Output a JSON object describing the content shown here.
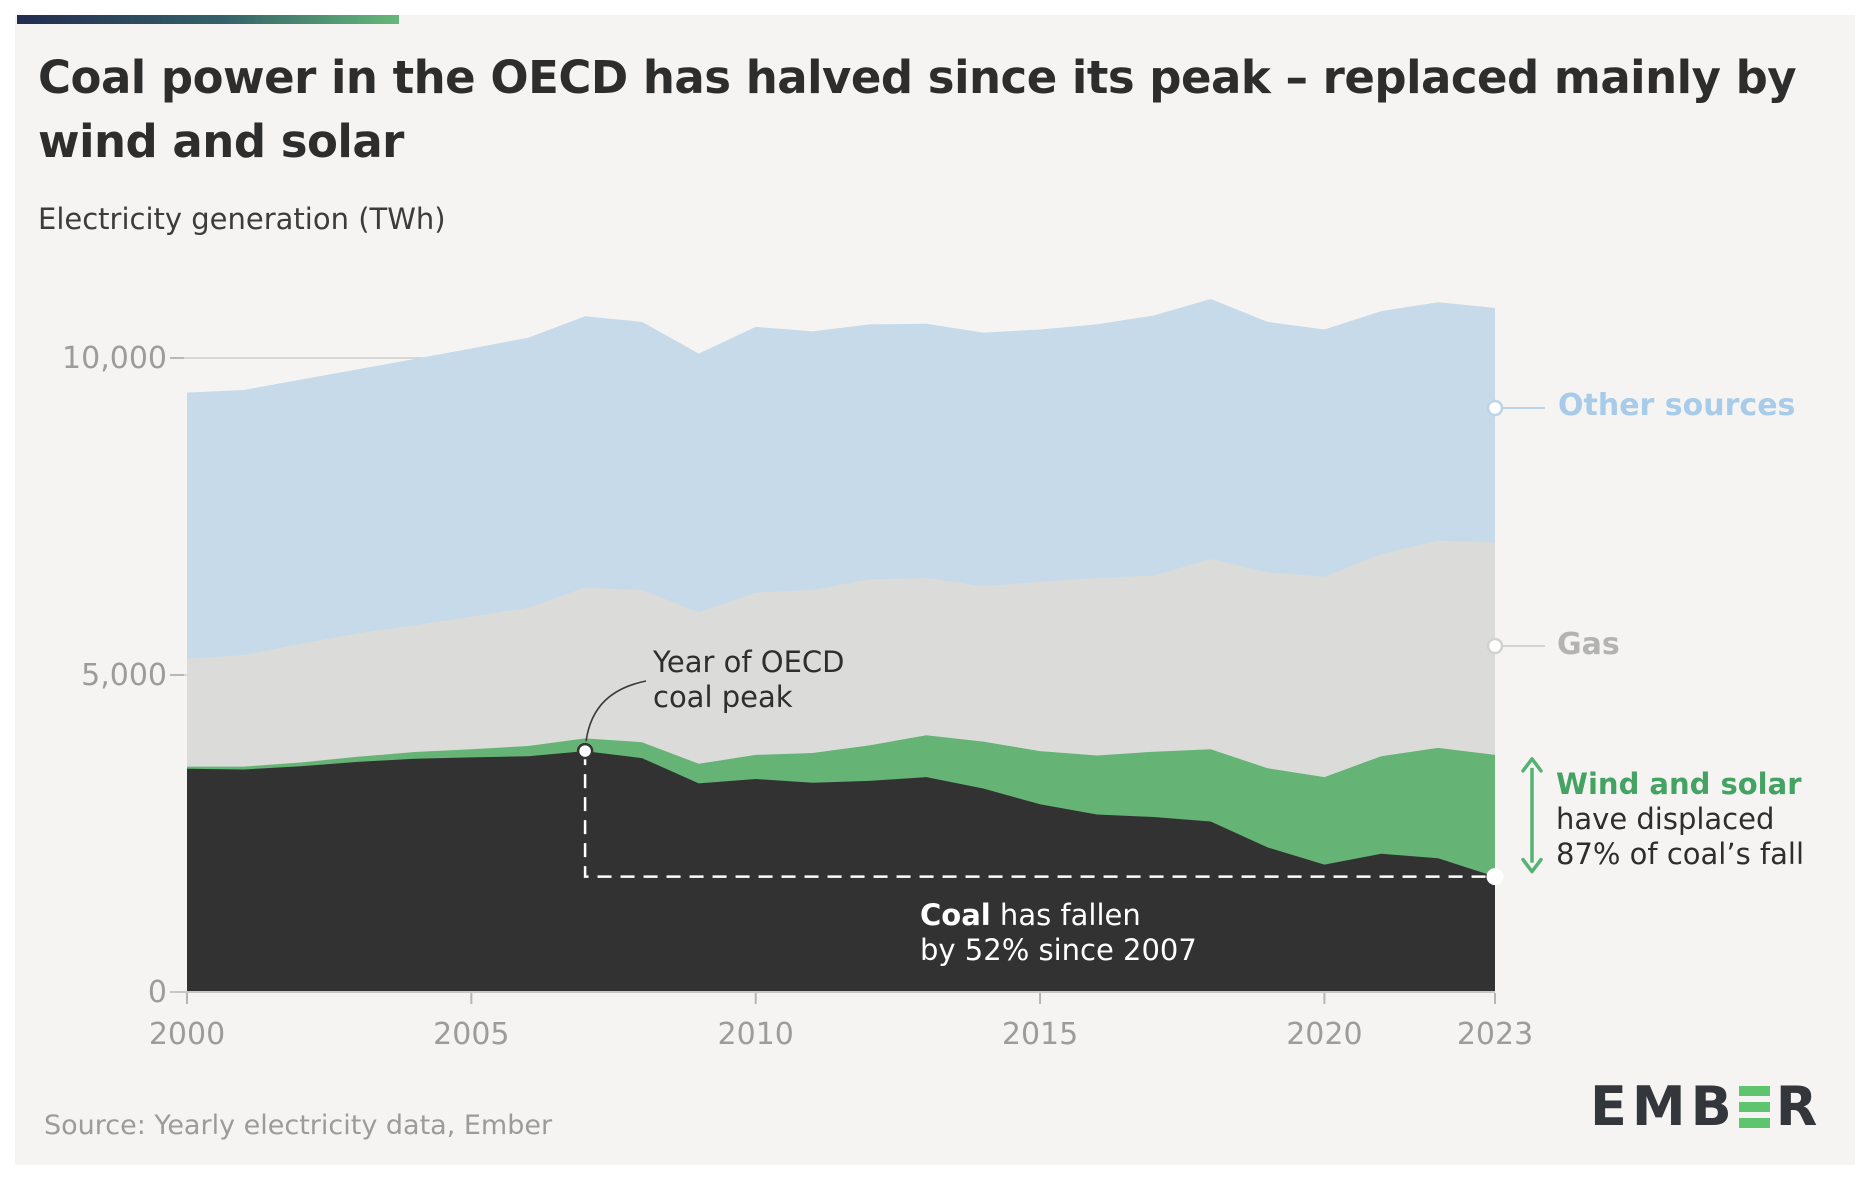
{
  "header": {
    "title_line1": "Coal power in the OECD has halved since its peak – replaced mainly by",
    "title_line2": "wind and solar",
    "subtitle": "Electricity generation (TWh)"
  },
  "annotations": {
    "peak_line1": "Year of OECD",
    "peak_line2": "coal peak",
    "coal_bold": "Coal",
    "coal_line1_rest": " has fallen",
    "coal_line2": "by 52% since 2007",
    "ws_line1": "Wind and solar",
    "ws_line2": "have displaced",
    "ws_line3": "87% of coal’s fall"
  },
  "labels": {
    "other_sources": "Other sources",
    "gas": "Gas"
  },
  "footer": {
    "source": "Source: Yearly electricity data, Ember",
    "logo_start": "EMB",
    "logo_end": "R"
  },
  "chart_data": {
    "type": "area",
    "stacked": true,
    "title": "Coal power in the OECD has halved since its peak – replaced mainly by wind and solar",
    "ylabel": "Electricity generation (TWh)",
    "ylim": [
      0,
      10000
    ],
    "grid": "horizontal",
    "x": [
      2000,
      2001,
      2002,
      2003,
      2004,
      2005,
      2006,
      2007,
      2008,
      2009,
      2010,
      2011,
      2012,
      2013,
      2014,
      2015,
      2016,
      2017,
      2018,
      2019,
      2020,
      2021,
      2022,
      2023
    ],
    "series": [
      {
        "name": "Coal",
        "color": "#323232",
        "values": [
          3520,
          3510,
          3560,
          3630,
          3680,
          3700,
          3720,
          3800,
          3690,
          3290,
          3360,
          3300,
          3330,
          3390,
          3210,
          2960,
          2800,
          2760,
          2690,
          2280,
          2010,
          2180,
          2110,
          1820
        ]
      },
      {
        "name": "Wind and solar",
        "color": "#65b476",
        "values": [
          35,
          45,
          60,
          80,
          105,
          130,
          160,
          200,
          250,
          310,
          380,
          470,
          560,
          660,
          740,
          840,
          930,
          1030,
          1140,
          1250,
          1380,
          1540,
          1740,
          1920
        ]
      },
      {
        "name": "Gas",
        "color": "#dbdbd9",
        "values": [
          1700,
          1760,
          1870,
          1950,
          2000,
          2090,
          2180,
          2380,
          2400,
          2390,
          2560,
          2570,
          2620,
          2480,
          2450,
          2670,
          2800,
          2780,
          3000,
          3090,
          3160,
          3190,
          3270,
          3350
        ]
      },
      {
        "name": "Other sources",
        "color": "#c6daea",
        "values": [
          4200,
          4180,
          4170,
          4160,
          4200,
          4230,
          4260,
          4280,
          4230,
          4080,
          4190,
          4080,
          4020,
          4010,
          4000,
          3980,
          4000,
          4100,
          4100,
          3950,
          3900,
          3830,
          3760,
          3700
        ]
      }
    ],
    "yticks": [
      {
        "value": 0,
        "label": "0"
      },
      {
        "value": 5000,
        "label": "5,000"
      },
      {
        "value": 10000,
        "label": "10,000"
      }
    ],
    "xticks": [
      {
        "value": 2000,
        "label": "2000"
      },
      {
        "value": 2005,
        "label": "2005"
      },
      {
        "value": 2010,
        "label": "2010"
      },
      {
        "value": 2015,
        "label": "2015"
      },
      {
        "value": 2020,
        "label": "2020"
      },
      {
        "value": 2023,
        "label": "2023"
      }
    ],
    "key_facts": {
      "coal_peak_year": 2007,
      "coal_fall_pct_since_2007": 52,
      "wind_solar_share_of_coal_fall_pct": 87
    }
  }
}
